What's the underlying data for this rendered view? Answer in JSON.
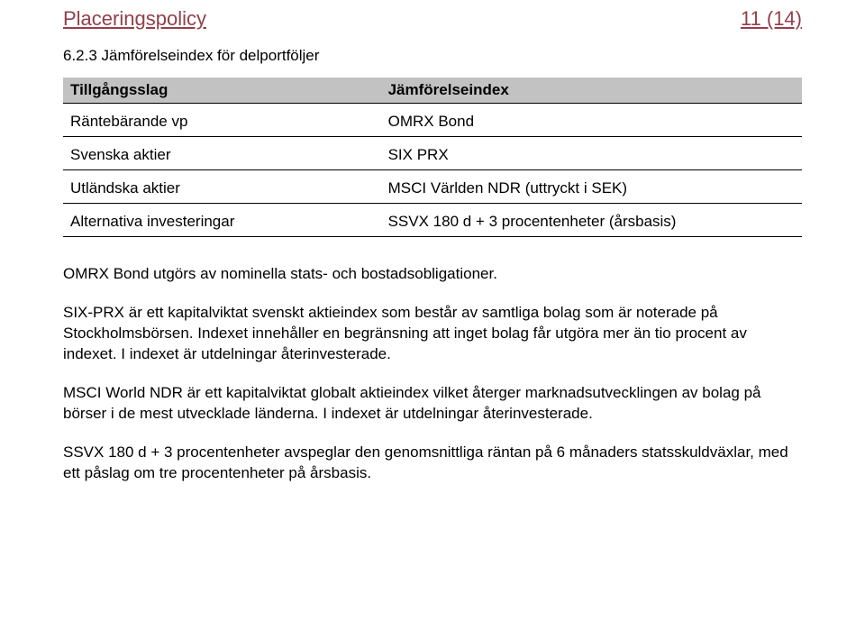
{
  "header": {
    "doc_title": "Placeringspolicy",
    "page_indicator": "11 (14)"
  },
  "section": {
    "number_and_title": "6.2.3   Jämförelseindex för delportföljer"
  },
  "table": {
    "columns": [
      "Tillgångsslag",
      "Jämförelseindex"
    ],
    "rows": [
      [
        "Räntebärande vp",
        "OMRX Bond"
      ],
      [
        "Svenska aktier",
        "SIX PRX"
      ],
      [
        "Utländska aktier",
        "MSCI Världen NDR (uttryckt i SEK)"
      ],
      [
        "Alternativa investeringar",
        "SSVX 180 d + 3 procentenheter (årsbasis)"
      ]
    ]
  },
  "paragraphs": {
    "p1": "OMRX Bond utgörs av nominella stats- och bostadsobligationer.",
    "p2": "SIX-PRX är ett kapitalviktat svenskt aktieindex som består av samtliga bolag som är noterade på Stockholmsbörsen. Indexet innehåller en begränsning att inget bolag får utgöra mer än tio procent av indexet. I indexet är utdelningar återinvesterade.",
    "p3": "MSCI World NDR är ett kapitalviktat globalt aktieindex vilket återger marknadsutvecklingen av bolag på börser i de mest utvecklade länderna. I indexet är utdelningar återinvesterade.",
    "p4": "SSVX 180 d + 3 procentenheter avspeglar den genomsnittliga räntan på 6 månaders statsskuldväxlar, med ett påslag om tre procentenheter på årsbasis."
  }
}
